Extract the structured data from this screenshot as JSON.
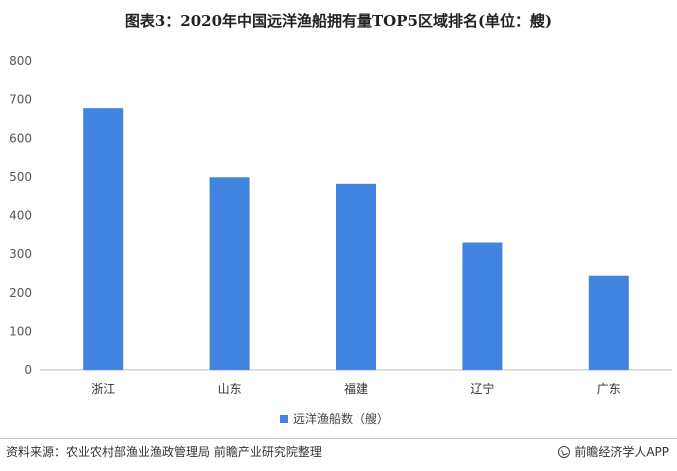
{
  "chart_data": {
    "type": "bar",
    "title": "图表3：2020年中国远洋渔船拥有量TOP5区域排名(单位：艘)",
    "categories": [
      "浙江",
      "山东",
      "福建",
      "辽宁",
      "广东"
    ],
    "series": [
      {
        "name": "远洋渔船数（艘）",
        "values": [
          678,
          499,
          482,
          330,
          244
        ]
      }
    ],
    "ylim": [
      0,
      800
    ],
    "yticks": [
      0,
      100,
      200,
      300,
      400,
      500,
      600,
      700,
      800
    ],
    "xlabel": "",
    "ylabel": "",
    "grid": false,
    "legend_position": "bottom-center",
    "bar_color": "#4285e0"
  },
  "footer": {
    "source": "资料来源：农业农村部渔业渔政管理局 前瞻产业研究院整理",
    "brand": "前瞻经济学人APP"
  }
}
